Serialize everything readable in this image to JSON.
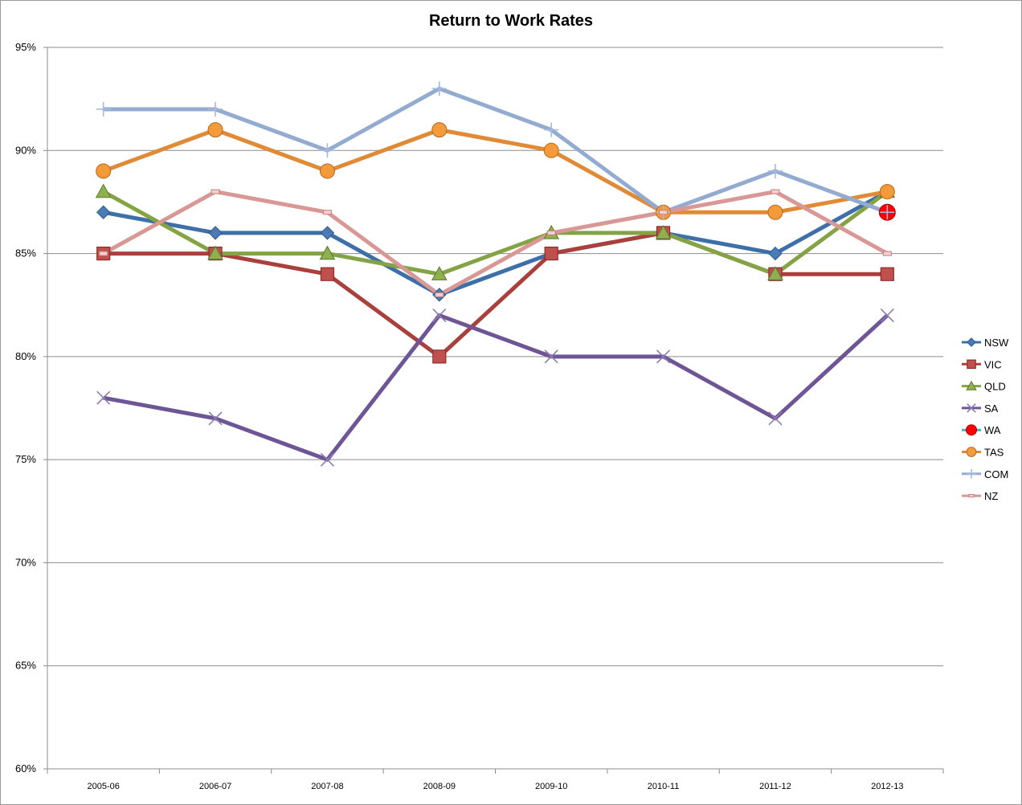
{
  "chart_data": {
    "type": "line",
    "title": "Return to Work Rates",
    "xlabel": "",
    "ylabel": "",
    "categories": [
      "2005-06",
      "2006-07",
      "2007-08",
      "2008-09",
      "2009-10",
      "2010-11",
      "2011-12",
      "2012-13"
    ],
    "ylim": [
      60,
      95
    ],
    "yticks": [
      "60%",
      "65%",
      "70%",
      "75%",
      "80%",
      "85%",
      "90%",
      "95%"
    ],
    "grid": true,
    "legend_position": "right",
    "series": [
      {
        "name": "NSW",
        "color": "#3D6FA8",
        "marker": "diamond",
        "values": [
          87,
          86,
          86,
          83,
          85,
          86,
          85,
          88
        ]
      },
      {
        "name": "VIC",
        "color": "#A9403C",
        "marker": "square",
        "values": [
          85,
          85,
          84,
          80,
          85,
          86,
          84,
          84
        ]
      },
      {
        "name": "QLD",
        "color": "#84A345",
        "marker": "triangle",
        "values": [
          88,
          85,
          85,
          84,
          86,
          86,
          84,
          88
        ]
      },
      {
        "name": "SA",
        "color": "#6E5595",
        "marker": "x",
        "values": [
          78,
          77,
          75,
          82,
          80,
          80,
          77,
          82
        ]
      },
      {
        "name": "WA",
        "color": "#FF0000",
        "marker": "circle-red",
        "values": [
          null,
          null,
          null,
          null,
          null,
          null,
          null,
          87
        ]
      },
      {
        "name": "TAS",
        "color": "#E08A36",
        "marker": "circle",
        "values": [
          89,
          91,
          89,
          91,
          90,
          87,
          87,
          88
        ]
      },
      {
        "name": "COM",
        "color": "#93ABD0",
        "marker": "plus",
        "values": [
          92,
          92,
          90,
          93,
          91,
          87,
          89,
          87
        ]
      },
      {
        "name": "NZ",
        "color": "#D99795",
        "marker": "dash",
        "values": [
          85,
          88,
          87,
          83,
          86,
          87,
          88,
          85
        ]
      }
    ]
  }
}
